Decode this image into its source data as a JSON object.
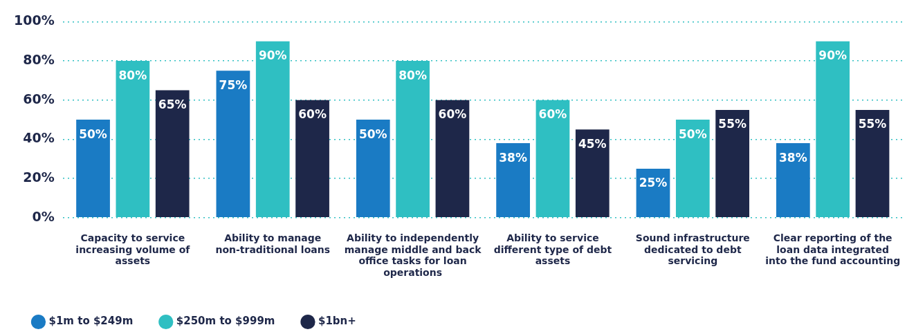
{
  "chart_data": {
    "type": "bar",
    "categories": [
      "Capacity to service increasing volume of assets",
      "Ability to manage non-traditional loans",
      "Ability to independently manage middle and back office tasks for loan operations",
      "Ability to service different type of debt assets",
      "Sound infrastructure dedicated to debt servicing",
      "Clear reporting of the loan data integrated into the fund accounting"
    ],
    "series": [
      {
        "name": "$1m to $249m",
        "color": "#1a7bc4",
        "values": [
          50,
          75,
          50,
          38,
          25,
          38
        ],
        "value_labels": [
          "50%",
          "75%",
          "50%",
          "38%",
          "25%",
          "38%"
        ]
      },
      {
        "name": "$250m to $999m",
        "color": "#2fbfc2",
        "values": [
          80,
          90,
          80,
          60,
          50,
          90
        ],
        "value_labels": [
          "80%",
          "90%",
          "80%",
          "60%",
          "50%",
          "90%"
        ]
      },
      {
        "name": "$1bn+",
        "color": "#1e2749",
        "values": [
          65,
          60,
          60,
          45,
          55,
          55
        ],
        "value_labels": [
          "65%",
          "60%",
          "60%",
          "45%",
          "55%",
          "55%"
        ]
      }
    ],
    "ylim": [
      0,
      100
    ],
    "yticks": [
      {
        "value": 0,
        "label": "0%"
      },
      {
        "value": 20,
        "label": "20%"
      },
      {
        "value": 40,
        "label": "40%"
      },
      {
        "value": 60,
        "label": "60%"
      },
      {
        "value": 80,
        "label": "80%"
      },
      {
        "value": 100,
        "label": "100%"
      }
    ],
    "grid": "y",
    "legend": "bottom left",
    "marker": "circle"
  }
}
